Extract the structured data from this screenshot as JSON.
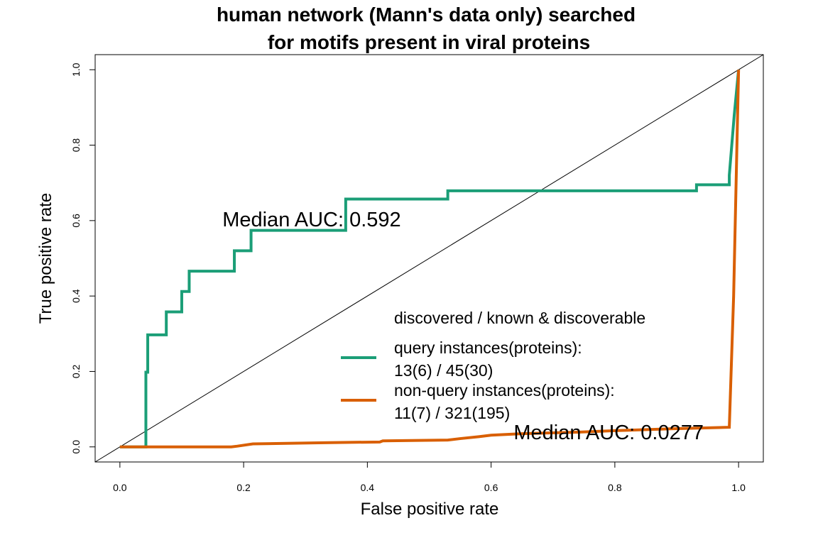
{
  "chart_data": {
    "type": "line",
    "title": [
      "human network (Mann's data only) searched",
      "for motifs present in viral proteins"
    ],
    "xlabel": "False positive rate",
    "ylabel": "True positive rate",
    "xlim": [
      -0.04,
      1.04
    ],
    "ylim": [
      -0.04,
      1.04
    ],
    "xticks": [
      0.0,
      0.2,
      0.4,
      0.6,
      0.8,
      1.0
    ],
    "xtick_labels": [
      "0.0",
      "0.2",
      "0.4",
      "0.6",
      "0.8",
      "1.0"
    ],
    "yticks": [
      0.0,
      0.2,
      0.4,
      0.6,
      0.8,
      1.0
    ],
    "ytick_labels": [
      "0.0",
      "0.2",
      "0.4",
      "0.6",
      "0.8",
      "1.0"
    ],
    "grid": false,
    "diagonal_reference": true,
    "series": [
      {
        "color": "#1b9e77",
        "x": [
          0.0,
          0.04,
          0.04,
          0.042,
          0.042,
          0.045,
          0.045,
          0.075,
          0.075,
          0.1,
          0.1,
          0.112,
          0.112,
          0.185,
          0.185,
          0.212,
          0.212,
          0.365,
          0.365,
          0.53,
          0.53,
          0.932,
          0.932,
          0.985,
          0.985,
          0.993,
          1.0
        ],
        "y": [
          0.0,
          0.0,
          0.0,
          0.0,
          0.198,
          0.198,
          0.297,
          0.297,
          0.358,
          0.358,
          0.412,
          0.412,
          0.466,
          0.466,
          0.52,
          0.52,
          0.574,
          0.574,
          0.657,
          0.657,
          0.679,
          0.679,
          0.695,
          0.695,
          0.72,
          0.88,
          1.0
        ]
      },
      {
        "color": "#d95f02",
        "x": [
          0.0,
          0.18,
          0.19,
          0.215,
          0.33,
          0.42,
          0.425,
          0.53,
          0.55,
          0.58,
          0.6,
          0.65,
          0.74,
          0.8,
          0.89,
          0.985,
          0.992,
          1.0
        ],
        "y": [
          0.0,
          0.0,
          0.002,
          0.008,
          0.011,
          0.013,
          0.016,
          0.018,
          0.022,
          0.027,
          0.031,
          0.035,
          0.039,
          0.043,
          0.048,
          0.052,
          0.4,
          1.0
        ]
      }
    ],
    "annotations": [
      {
        "text": "Median AUC: 0.592",
        "x": 0.31,
        "y": 0.585
      },
      {
        "text": "Median AUC: 0.0277",
        "x": 0.79,
        "y": 0.02
      }
    ],
    "legend": {
      "placement": "bottom-right",
      "header": "discovered / known & discoverable",
      "entries": [
        {
          "color": "#1b9e77",
          "lines": [
            "query instances(proteins):",
            "13(6) / 45(30)"
          ]
        },
        {
          "color": "#d95f02",
          "lines": [
            "non-query instances(proteins):",
            "11(7) / 321(195)"
          ]
        }
      ]
    }
  }
}
